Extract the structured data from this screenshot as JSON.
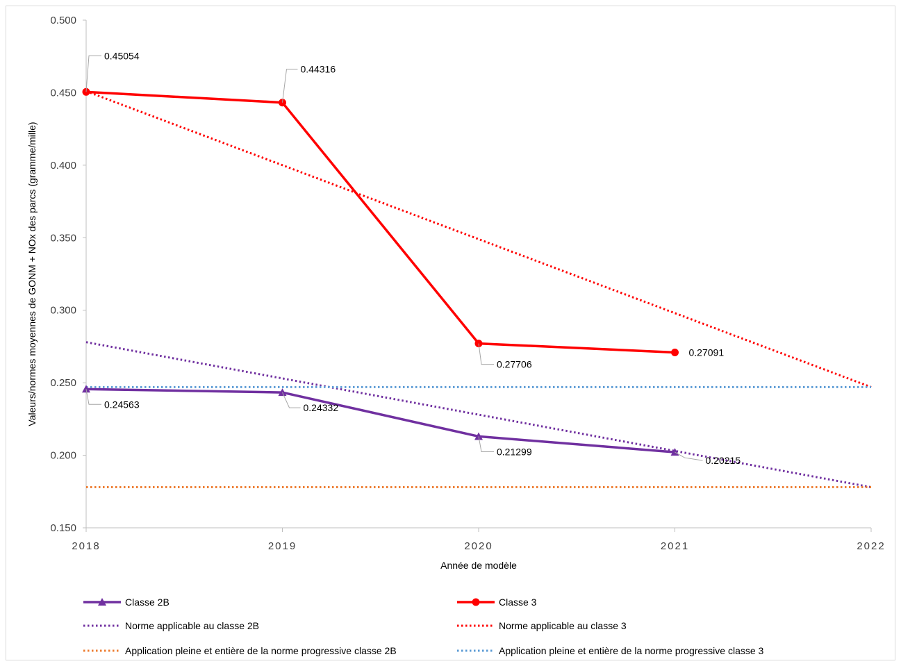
{
  "chart_data": {
    "type": "line",
    "title": "",
    "xlabel": "Année de modèle",
    "ylabel": "Valeurs/normes moyennes de GONM + NOx des parcs (gramme/mille)",
    "x": [
      2018,
      2019,
      2020,
      2021,
      2022
    ],
    "x_tick_labels": [
      "2018",
      "2019",
      "2020",
      "2021",
      "2022"
    ],
    "ylim": [
      0.15,
      0.5
    ],
    "y_tick_labels": [
      "0.150",
      "0.200",
      "0.250",
      "0.300",
      "0.350",
      "0.400",
      "0.450",
      "0.500"
    ],
    "y_ticks": [
      0.15,
      0.2,
      0.25,
      0.3,
      0.35,
      0.4,
      0.45,
      0.5
    ],
    "grid": false,
    "legend_position": "bottom",
    "series": [
      {
        "name": "Classe 2B",
        "style": "solid",
        "marker": "triangle",
        "color": "#7030a0",
        "x": [
          2018,
          2019,
          2020,
          2021
        ],
        "values": [
          0.24563,
          0.24332,
          0.21299,
          0.20215
        ],
        "data_labels": [
          "0.24563",
          "0.24332",
          "0.21299",
          "0.20215"
        ]
      },
      {
        "name": "Classe 3",
        "style": "solid",
        "marker": "circle",
        "color": "#ff0000",
        "x": [
          2018,
          2019,
          2020,
          2021
        ],
        "values": [
          0.45054,
          0.44316,
          0.27706,
          0.27091
        ],
        "data_labels": [
          "0.45054",
          "0.44316",
          "0.27706",
          "0.27091"
        ]
      },
      {
        "name": "Norme applicable au classe 2B",
        "style": "dotted",
        "marker": "none",
        "color": "#7030a0",
        "x": [
          2018,
          2022
        ],
        "values": [
          0.278,
          0.178
        ]
      },
      {
        "name": "Norme applicable au classe 3",
        "style": "dotted",
        "marker": "none",
        "color": "#ff0000",
        "x": [
          2018,
          2022
        ],
        "values": [
          0.451,
          0.247
        ]
      },
      {
        "name": "Application pleine et entière de la norme progressive classe 2B",
        "style": "dotted",
        "marker": "none",
        "color": "#ed7d31",
        "x": [
          2018,
          2022
        ],
        "values": [
          0.178,
          0.178
        ]
      },
      {
        "name": "Application pleine et entière de la norme progressive classe 3",
        "style": "dotted",
        "marker": "none",
        "color": "#5b9bd5",
        "x": [
          2018,
          2022
        ],
        "values": [
          0.247,
          0.247
        ]
      }
    ]
  }
}
